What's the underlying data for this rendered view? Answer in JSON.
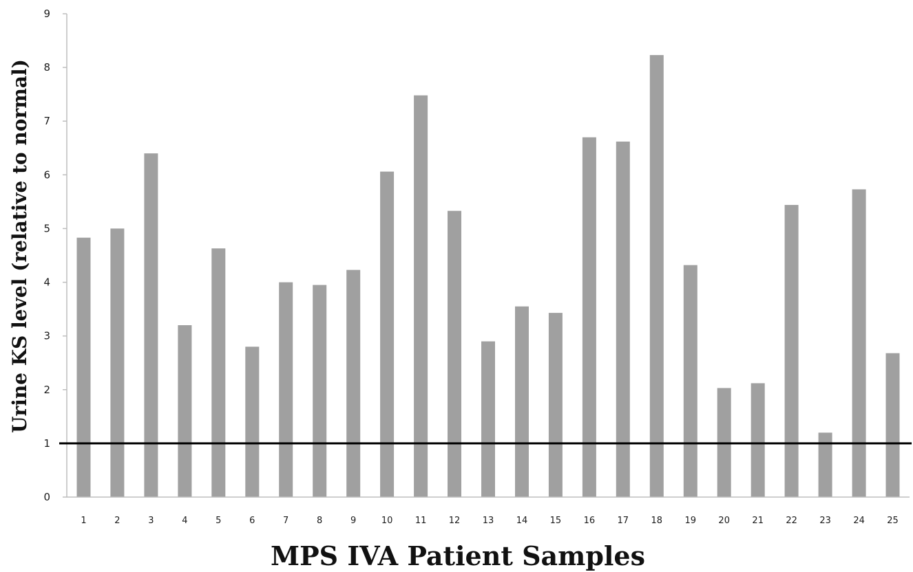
{
  "chart_data": {
    "type": "bar",
    "title": "",
    "xlabel": "MPS IVA Patient Samples",
    "ylabel": "Urine KS level  (relative to normal)",
    "categories": [
      "1",
      "2",
      "3",
      "4",
      "5",
      "6",
      "7",
      "8",
      "9",
      "10",
      "11",
      "12",
      "13",
      "14",
      "15",
      "16",
      "17",
      "18",
      "19",
      "20",
      "21",
      "22",
      "23",
      "24",
      "25"
    ],
    "values": [
      4.83,
      5.0,
      6.4,
      3.2,
      4.63,
      2.8,
      4.0,
      3.95,
      4.23,
      6.06,
      7.48,
      5.33,
      2.9,
      3.55,
      3.43,
      6.7,
      6.62,
      8.23,
      4.32,
      2.03,
      2.12,
      5.44,
      1.2,
      5.73,
      2.68
    ],
    "ylim": [
      0,
      9
    ],
    "yticks": [
      "0",
      "1",
      "2",
      "3",
      "4",
      "5",
      "6",
      "7",
      "8",
      "9"
    ],
    "reference_line": {
      "y": 1,
      "color": "#000000"
    },
    "bar_color": "#a0a0a0",
    "grid": false,
    "legend": "none"
  }
}
